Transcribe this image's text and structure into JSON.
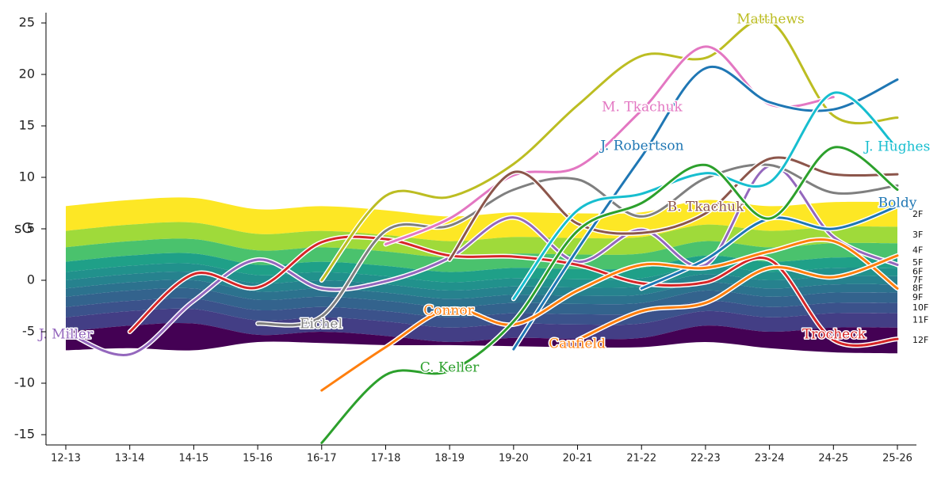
{
  "chart_data": {
    "type": "line",
    "y_label": "sG",
    "categories": [
      "12-13",
      "13-14",
      "14-15",
      "15-16",
      "16-17",
      "17-18",
      "18-19",
      "19-20",
      "20-21",
      "21-22",
      "22-23",
      "23-24",
      "24-25",
      "25-26"
    ],
    "ylim": [
      -16,
      26
    ],
    "yticks": [
      -15,
      -10,
      -5,
      0,
      5,
      10,
      15,
      20,
      25
    ],
    "tiers": [
      {
        "name": "2F",
        "color": "#fde725",
        "values": [
          7.2,
          7.8,
          8.0,
          6.9,
          7.2,
          6.8,
          6.2,
          6.6,
          6.5,
          6.6,
          7.8,
          7.2,
          7.6,
          7.6
        ]
      },
      {
        "name": "3F",
        "color": "#9fda3a",
        "values": [
          4.8,
          5.4,
          5.6,
          4.5,
          4.8,
          4.4,
          3.8,
          4.2,
          4.1,
          4.2,
          5.4,
          4.8,
          5.2,
          5.2
        ]
      },
      {
        "name": "4F",
        "color": "#4ac26d",
        "values": [
          3.2,
          3.8,
          4.0,
          2.9,
          3.2,
          2.8,
          2.2,
          2.6,
          2.5,
          2.6,
          3.8,
          3.2,
          3.6,
          3.6
        ]
      },
      {
        "name": "5F",
        "color": "#1fa088",
        "values": [
          1.8,
          2.4,
          2.6,
          1.5,
          1.8,
          1.4,
          0.8,
          1.2,
          1.1,
          1.2,
          2.4,
          1.8,
          2.2,
          2.2
        ]
      },
      {
        "name": "6F",
        "color": "#21918c",
        "values": [
          0.8,
          1.4,
          1.6,
          0.5,
          0.8,
          0.4,
          -0.2,
          0.2,
          0.1,
          0.2,
          1.4,
          0.8,
          1.2,
          1.2
        ]
      },
      {
        "name": "7F",
        "color": "#26828e",
        "values": [
          0.0,
          0.6,
          0.8,
          -0.3,
          0.0,
          -0.4,
          -1.0,
          -0.6,
          -0.7,
          -0.6,
          0.6,
          0.0,
          0.4,
          0.4
        ]
      },
      {
        "name": "8F",
        "color": "#2c728e",
        "values": [
          -0.8,
          -0.2,
          0.0,
          -1.1,
          -0.8,
          -1.2,
          -1.8,
          -1.4,
          -1.5,
          -1.4,
          -0.2,
          -0.8,
          -0.4,
          -0.4
        ]
      },
      {
        "name": "9F",
        "color": "#33638d",
        "values": [
          -1.6,
          -1.0,
          -0.8,
          -1.9,
          -1.6,
          -2.0,
          -2.6,
          -2.2,
          -2.3,
          -2.2,
          -1.0,
          -1.6,
          -1.2,
          -1.2
        ]
      },
      {
        "name": "10F",
        "color": "#3b528b",
        "values": [
          -2.6,
          -2.0,
          -1.8,
          -2.9,
          -2.6,
          -3.0,
          -3.6,
          -3.2,
          -3.3,
          -3.2,
          -2.0,
          -2.6,
          -2.2,
          -2.2
        ]
      },
      {
        "name": "11F",
        "color": "#433e85",
        "values": [
          -3.6,
          -3.0,
          -2.8,
          -3.9,
          -3.6,
          -4.0,
          -4.6,
          -4.2,
          -4.3,
          -4.2,
          -3.0,
          -3.6,
          -3.2,
          -3.2
        ]
      },
      {
        "name": "12F",
        "color": "#440154",
        "values": [
          -5.0,
          -4.4,
          -4.2,
          -5.3,
          -5.0,
          -5.4,
          -6.0,
          -5.6,
          -5.7,
          -5.6,
          -4.4,
          -5.0,
          -4.6,
          -4.6
        ]
      }
    ],
    "tier_floor": [
      -6.8,
      -6.6,
      -6.8,
      -6.0,
      -6.1,
      -6.3,
      -6.3,
      -6.4,
      -6.5,
      -6.5,
      -6.0,
      -6.6,
      -7.0,
      -7.1
    ],
    "series": [
      {
        "name": "J. Miller",
        "color": "#9467bd",
        "values": [
          -5.0,
          -7.2,
          -2.0,
          2.0,
          -0.8,
          -0.1,
          2.2,
          6.1,
          1.8,
          4.9,
          1.5,
          11.1,
          4.2,
          1.5
        ]
      },
      {
        "name": "Trocheck",
        "color": "#d62728",
        "values": [
          null,
          -5.0,
          0.6,
          -0.7,
          3.7,
          4.0,
          2.4,
          2.3,
          1.5,
          -0.3,
          -0.2,
          2.0,
          -5.8,
          -5.7
        ]
      },
      {
        "name": "Eichel",
        "color": "#7f7f7f",
        "values": [
          null,
          null,
          null,
          -4.2,
          -3.5,
          4.8,
          5.3,
          8.8,
          9.8,
          6.2,
          9.9,
          11.2,
          8.5,
          9.2
        ]
      },
      {
        "name": "Matthews",
        "color": "#bcbd22",
        "values": [
          null,
          null,
          null,
          null,
          0.0,
          8.2,
          8.1,
          11.3,
          17.0,
          21.8,
          21.6,
          25.2,
          16.0,
          15.8
        ]
      },
      {
        "name": "M. Tkachuk",
        "color": "#e377c2",
        "values": [
          null,
          null,
          null,
          null,
          null,
          3.5,
          6.0,
          10.2,
          11.0,
          16.5,
          22.7,
          17.1,
          17.8,
          null
        ]
      },
      {
        "name": "B. Tkachuk",
        "color": "#8c564b",
        "values": [
          null,
          null,
          null,
          null,
          null,
          null,
          2.0,
          10.5,
          5.5,
          4.6,
          6.5,
          11.8,
          10.3,
          10.3
        ]
      },
      {
        "name": "J. Robertson",
        "color": "#1f77b4",
        "values": [
          null,
          null,
          null,
          null,
          null,
          null,
          null,
          -6.7,
          3.0,
          12.0,
          20.6,
          17.3,
          16.6,
          19.5
        ]
      },
      {
        "name": "Boldy",
        "color": "#1f77b4",
        "values": [
          null,
          null,
          null,
          null,
          null,
          null,
          null,
          null,
          null,
          -0.8,
          2.0,
          6.0,
          5.0,
          7.2
        ]
      },
      {
        "name": "J. Hughes",
        "color": "#17becf",
        "values": [
          null,
          null,
          null,
          null,
          null,
          null,
          null,
          -1.8,
          6.8,
          8.4,
          10.4,
          9.5,
          18.2,
          12.8
        ]
      },
      {
        "name": "Connor",
        "color": "#ff7f0e",
        "values": [
          null,
          null,
          null,
          null,
          -10.7,
          -6.5,
          -2.8,
          -4.3,
          -1.0,
          1.5,
          1.2,
          2.8,
          3.8,
          -0.8
        ]
      },
      {
        "name": "Caufield",
        "color": "#ff7f0e",
        "values": [
          null,
          null,
          null,
          null,
          null,
          null,
          null,
          null,
          -5.8,
          -3.0,
          -2.2,
          1.2,
          0.3,
          2.4
        ]
      },
      {
        "name": "C. Keller",
        "color": "#2ca02c",
        "values": [
          null,
          null,
          null,
          null,
          -15.8,
          -9.2,
          -8.8,
          -4.0,
          4.8,
          7.5,
          11.2,
          6.0,
          12.9,
          8.8
        ]
      }
    ]
  }
}
